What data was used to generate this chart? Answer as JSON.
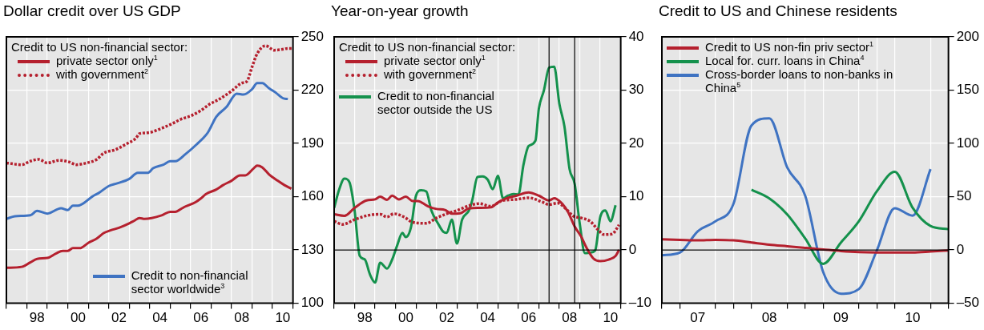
{
  "chart_data": [
    {
      "type": "line",
      "title": "Dollar credit over US GDP",
      "legend_title": "Credit to US non-financial sector:",
      "legend": "left",
      "marker": "none",
      "grid": true,
      "xlim": [
        "1997",
        "2011"
      ],
      "xticks": [
        {
          "value": "1997",
          "label": null
        },
        {
          "value": "1998",
          "label": null
        },
        {
          "value": "1998-07",
          "label": "98"
        },
        {
          "value": "1999",
          "label": null
        },
        {
          "value": "2000",
          "label": null
        },
        {
          "value": "2000-07",
          "label": "00"
        },
        {
          "value": "2001",
          "label": null
        },
        {
          "value": "2002",
          "label": null
        },
        {
          "value": "2002-07",
          "label": "02"
        },
        {
          "value": "2003",
          "label": null
        },
        {
          "value": "2004",
          "label": null
        },
        {
          "value": "2004-07",
          "label": "04"
        },
        {
          "value": "2005",
          "label": null
        },
        {
          "value": "2006",
          "label": null
        },
        {
          "value": "2006-07",
          "label": "06"
        },
        {
          "value": "2007",
          "label": null
        },
        {
          "value": "2008",
          "label": null
        },
        {
          "value": "2008-07",
          "label": "08"
        },
        {
          "value": "2009",
          "label": null
        },
        {
          "value": "2010",
          "label": null
        },
        {
          "value": "2010-07",
          "label": "10"
        },
        {
          "value": "2011",
          "label": null
        }
      ],
      "ylim": [
        100,
        250
      ],
      "yticks": [
        100,
        130,
        160,
        190,
        220,
        250
      ],
      "series": [
        {
          "name": "private sector only$^{1}$",
          "color": "#b5202e",
          "line_style": "solid",
          "x": [
            "1997-01",
            "1997-10",
            "1998-03",
            "1998-07",
            "1999-01",
            "1999-06",
            "1999-10",
            "2000-01",
            "2000-04",
            "2000-08",
            "2001-01",
            "2001-06",
            "2001-10",
            "2002-02",
            "2002-07",
            "2003-01",
            "2003-04",
            "2003-07",
            "2003-10",
            "2004-08",
            "2005-01",
            "2005-04",
            "2005-08",
            "2005-10",
            "2006-04",
            "2006-07",
            "2006-10",
            "2007-04",
            "2007-08",
            "2008-01",
            "2008-06",
            "2008-09",
            "2009-02",
            "2009-04",
            "2009-07",
            "2009-11",
            "2010-04",
            "2010-08",
            "2010-12"
          ],
          "values": [
            120,
            120.5,
            123,
            125,
            125.5,
            128,
            129.5,
            129.5,
            131,
            131,
            134,
            136.5,
            139.5,
            141,
            142.5,
            145,
            146.5,
            148,
            147.5,
            149.5,
            151.5,
            151.5,
            153.5,
            154.5,
            157,
            159,
            161.5,
            164,
            166.5,
            169,
            172,
            172,
            176,
            177.5,
            176.5,
            172.5,
            169,
            166.5,
            164.5
          ]
        },
        {
          "name": "with government$^{2}$",
          "color": "#b5202e",
          "line_style": "dotted",
          "x": [
            "1997-01",
            "1997-10",
            "1998-03",
            "1998-08",
            "1999-01",
            "1999-08",
            "2000-02",
            "2000-06",
            "2000-12",
            "2001-06",
            "2001-10",
            "2002-05",
            "2002-11",
            "2003-05",
            "2003-07",
            "2003-12",
            "2004-08",
            "2005-02",
            "2005-07",
            "2006-01",
            "2006-07",
            "2006-12",
            "2007-06",
            "2008-01",
            "2008-07",
            "2008-10",
            "2009-01",
            "2009-04",
            "2009-09",
            "2010-02",
            "2010-07",
            "2010-10",
            "2011-01"
          ],
          "values": [
            179,
            178,
            180,
            181,
            179,
            180.5,
            179.5,
            178,
            179,
            181,
            184.5,
            186.5,
            189.5,
            193,
            195.5,
            196,
            198.5,
            201,
            203.5,
            205.5,
            208.5,
            212,
            215,
            219.5,
            224,
            225,
            233,
            240.5,
            245,
            242.5,
            243,
            243.5,
            243.5
          ]
        },
        {
          "name": "Credit to non-financial sector worldwide$^{3}$",
          "color": "#3f73c2",
          "line_style": "solid",
          "x": [
            "1997-01",
            "1997-06",
            "1998-03",
            "1998-07",
            "1999-01",
            "1999-09",
            "2000-01",
            "2000-04",
            "2000-07",
            "2001-04",
            "2001-07",
            "2002-01",
            "2002-06",
            "2003-01",
            "2003-06",
            "2003-12",
            "2004-03",
            "2004-09",
            "2005-01",
            "2005-04",
            "2005-10",
            "2006-04",
            "2006-11",
            "2007-04",
            "2007-10",
            "2008-04",
            "2008-08",
            "2009-01",
            "2009-04",
            "2009-07",
            "2009-11",
            "2010-03",
            "2010-07",
            "2010-10"
          ],
          "values": [
            147.5,
            149,
            149.5,
            152,
            150.5,
            153.5,
            152.5,
            155,
            155,
            160.5,
            162,
            166,
            167.5,
            170,
            173.5,
            173.5,
            176,
            178,
            180,
            180,
            184,
            189,
            196,
            205,
            210.5,
            218,
            217.5,
            220.5,
            224,
            224,
            221,
            218.5,
            215.5,
            215
          ]
        }
      ]
    },
    {
      "type": "line",
      "title": "Year-on-year growth",
      "legend_title": "Credit to US non-financial sector:",
      "legend": "top left",
      "marker": "none",
      "grid": true,
      "xlim": [
        "1997",
        "2011"
      ],
      "xticks": [
        {
          "value": "1997",
          "label": null
        },
        {
          "value": "1998",
          "label": null
        },
        {
          "value": "1998-07",
          "label": "98"
        },
        {
          "value": "1999",
          "label": null
        },
        {
          "value": "2000",
          "label": null
        },
        {
          "value": "2000-07",
          "label": "00"
        },
        {
          "value": "2001",
          "label": null
        },
        {
          "value": "2002",
          "label": null
        },
        {
          "value": "2002-07",
          "label": "02"
        },
        {
          "value": "2003",
          "label": null
        },
        {
          "value": "2004",
          "label": null
        },
        {
          "value": "2004-07",
          "label": "04"
        },
        {
          "value": "2005",
          "label": null
        },
        {
          "value": "2006",
          "label": null
        },
        {
          "value": "2006-07",
          "label": "06"
        },
        {
          "value": "2007",
          "label": null
        },
        {
          "value": "2008",
          "label": null
        },
        {
          "value": "2008-07",
          "label": "08"
        },
        {
          "value": "2009",
          "label": null
        },
        {
          "value": "2010",
          "label": null
        },
        {
          "value": "2010-07",
          "label": "10"
        },
        {
          "value": "2011",
          "label": null
        }
      ],
      "ylim": [
        -10,
        40
      ],
      "yticks": [
        {
          "value": -10,
          "label": "–10"
        },
        0,
        10,
        20,
        30,
        40
      ],
      "ref_lines": [
        {
          "axis": "y",
          "value": 0,
          "color": "#000000"
        },
        {
          "axis": "x",
          "value": "2007-07",
          "color": "#000000"
        },
        {
          "axis": "x",
          "value": "2008-10",
          "color": "#000000"
        }
      ],
      "series": [
        {
          "name": "private sector only$^{1}$",
          "color": "#b5202e",
          "line_style": "solid",
          "x": [
            "1997-01",
            "1997-07",
            "1998-01",
            "1998-08",
            "1999-01",
            "1999-04",
            "1999-08",
            "1999-11",
            "2000-03",
            "2000-07",
            "2000-11",
            "2001-02",
            "2001-08",
            "2002-01",
            "2002-06",
            "2002-10",
            "2003-03",
            "2003-08",
            "2004-02",
            "2004-09",
            "2005-01",
            "2005-06",
            "2005-12",
            "2006-07",
            "2007-01",
            "2007-07",
            "2007-10",
            "2008-02",
            "2008-06",
            "2008-10",
            "2009-02",
            "2009-05",
            "2009-09",
            "2010-01",
            "2010-06",
            "2010-10",
            "2010-12"
          ],
          "values": [
            6.7,
            6.4,
            7.9,
            9.3,
            9.5,
            10,
            9.4,
            10.2,
            9.5,
            10,
            9.2,
            9.2,
            8.2,
            7.7,
            7.5,
            6.8,
            6.9,
            7.8,
            7.9,
            8,
            8.9,
            9.7,
            10.2,
            10.8,
            10.2,
            9.3,
            9.7,
            8.9,
            7.2,
            4.4,
            2.4,
            0.4,
            -1.6,
            -2.1,
            -1.8,
            -1.1,
            0
          ]
        },
        {
          "name": "with government$^{2}$",
          "color": "#b5202e",
          "line_style": "dotted",
          "x": [
            "1997-01",
            "1997-06",
            "1998-01",
            "1998-09",
            "1999-04",
            "1999-08",
            "1999-12",
            "2000-06",
            "2000-11",
            "2001-07",
            "2002-01",
            "2002-07",
            "2003-01",
            "2003-08",
            "2004-02",
            "2004-09",
            "2005-03",
            "2005-12",
            "2006-07",
            "2007-03",
            "2007-07",
            "2007-12",
            "2008-05",
            "2008-09",
            "2009-02",
            "2009-07",
            "2009-12",
            "2010-03",
            "2010-08",
            "2010-12"
          ],
          "values": [
            5.4,
            4.8,
            5.7,
            6.5,
            6.7,
            6.2,
            6.8,
            6.2,
            5.2,
            5,
            6,
            6.8,
            7.4,
            8.3,
            8.7,
            8.2,
            9.2,
            9.5,
            9.8,
            9,
            8.5,
            8.8,
            7.7,
            6.4,
            6,
            5.4,
            3.7,
            2.9,
            3,
            4.7
          ]
        },
        {
          "name": "Credit to non-financial sector outside the US",
          "color": "#14914c",
          "line_style": "solid",
          "x": [
            "1997-01",
            "1997-04",
            "1997-07",
            "1997-10",
            "1998-01",
            "1998-04",
            "1998-07",
            "1998-10",
            "1999-01",
            "1999-04",
            "1999-08",
            "1999-11",
            "2000-02",
            "2000-05",
            "2000-07",
            "2000-10",
            "2001-01",
            "2001-04",
            "2001-07",
            "2001-10",
            "2002-02",
            "2002-05",
            "2002-07",
            "2002-10",
            "2003-01",
            "2003-04",
            "2003-08",
            "2003-10",
            "2004-01",
            "2004-04",
            "2004-07",
            "2004-10",
            "2005-01",
            "2005-04",
            "2005-07",
            "2005-10",
            "2006-01",
            "2006-04",
            "2006-07",
            "2006-11",
            "2007-01",
            "2007-04",
            "2007-07",
            "2007-10",
            "2008-01",
            "2008-04",
            "2008-07",
            "2008-10",
            "2009-01",
            "2009-04",
            "2009-07",
            "2009-10",
            "2010-01",
            "2010-04",
            "2010-07",
            "2010-10"
          ],
          "values": [
            7.9,
            11.4,
            13.4,
            12.7,
            7.4,
            -1.1,
            -1.8,
            -4.6,
            -6.1,
            -2.4,
            -3.5,
            -1.8,
            0.9,
            3.2,
            2.4,
            4.2,
            10.2,
            11.2,
            11,
            7.4,
            4.9,
            3.4,
            3.2,
            5.7,
            1.2,
            5.7,
            7.4,
            9.4,
            13.7,
            13.8,
            13.2,
            11.4,
            13.9,
            9.7,
            10.2,
            10.5,
            10.4,
            16,
            19.5,
            20.5,
            26.5,
            30,
            34.2,
            34.4,
            27.5,
            23.2,
            15.2,
            12.4,
            4.9,
            -0.6,
            -0.5,
            -0.1,
            6.2,
            7.4,
            5.4,
            8.4
          ]
        }
      ]
    },
    {
      "type": "line",
      "title": "Credit to US and Chinese residents",
      "legend": "top left",
      "marker": "none",
      "grid": true,
      "xlim": [
        "2007",
        "2011"
      ],
      "xticks": [
        {
          "value": "2007",
          "label": null
        },
        {
          "value": "2007-04",
          "label": null
        },
        {
          "value": "2007-07",
          "label": "07"
        },
        {
          "value": "2007-10",
          "label": null
        },
        {
          "value": "2008",
          "label": null
        },
        {
          "value": "2008-04",
          "label": null
        },
        {
          "value": "2008-07",
          "label": "08"
        },
        {
          "value": "2008-10",
          "label": null
        },
        {
          "value": "2009",
          "label": null
        },
        {
          "value": "2009-04",
          "label": null
        },
        {
          "value": "2009-07",
          "label": "09"
        },
        {
          "value": "2009-10",
          "label": null
        },
        {
          "value": "2010",
          "label": null
        },
        {
          "value": "2010-04",
          "label": null
        },
        {
          "value": "2010-07",
          "label": "10"
        },
        {
          "value": "2010-10",
          "label": null
        },
        {
          "value": "2011",
          "label": null
        }
      ],
      "ylim": [
        -50,
        200
      ],
      "yticks": [
        {
          "value": -50,
          "label": "–50"
        },
        0,
        50,
        100,
        150,
        200
      ],
      "ref_lines": [
        {
          "axis": "y",
          "value": 0,
          "color": "#000000"
        }
      ],
      "series": [
        {
          "name": "Credit to US non-fin priv sector$^{1}$",
          "color": "#b5202e",
          "line_style": "solid",
          "x": [
            "2007-01",
            "2007-04",
            "2007-07",
            "2007-10",
            "2008-01",
            "2008-04",
            "2008-07",
            "2008-10",
            "2009-01",
            "2009-04",
            "2009-07",
            "2009-10",
            "2010-01",
            "2010-04",
            "2010-07",
            "2010-10",
            "2011-01"
          ],
          "values": [
            10,
            9.5,
            9,
            9.5,
            9,
            7,
            5,
            3.5,
            2,
            0.5,
            -1,
            -2,
            -2.3,
            -2.3,
            -2.3,
            -1.5,
            -0.5
          ]
        },
        {
          "name": "Local for. curr. loans in China$^{4}$",
          "color": "#14914c",
          "line_style": "solid",
          "x": [
            "2008-04",
            "2008-07",
            "2008-10",
            "2009-01",
            "2009-04",
            "2009-07",
            "2009-10",
            "2010-01",
            "2010-04",
            "2010-07",
            "2010-10",
            "2011-01"
          ],
          "values": [
            56.6,
            48.4,
            33.3,
            10.8,
            -13,
            7,
            27,
            55,
            73.4,
            39.6,
            22.5,
            19.5
          ]
        },
        {
          "name": "Cross-border loans to non-banks in China$^{5}$",
          "color": "#3f73c2",
          "line_style": "solid",
          "x": [
            "2007-01",
            "2007-04",
            "2007-07",
            "2007-10",
            "2008-01",
            "2008-04",
            "2008-07",
            "2008-10",
            "2009-01",
            "2009-04",
            "2009-07",
            "2009-10",
            "2010-01",
            "2010-04",
            "2010-07",
            "2010-10"
          ],
          "values": [
            -5,
            -2.5,
            17.5,
            27,
            43.4,
            116.8,
            123.6,
            77.3,
            51,
            -20.5,
            -41,
            -36.7,
            -0.5,
            39.2,
            32.2,
            75.9
          ]
        }
      ]
    }
  ]
}
